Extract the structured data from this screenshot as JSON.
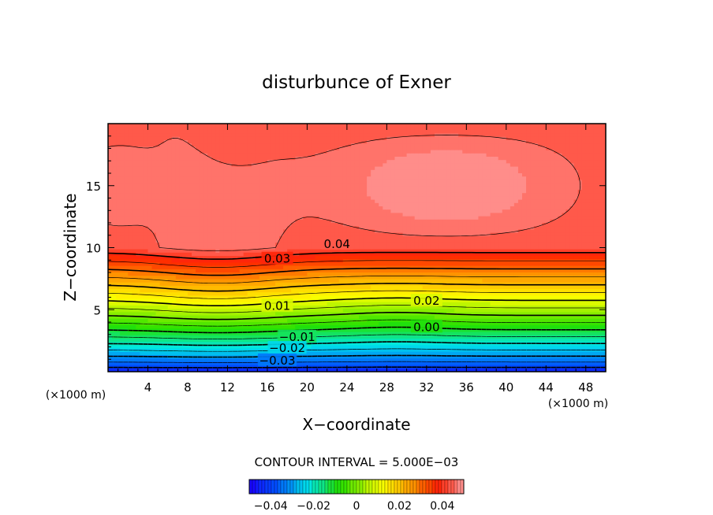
{
  "chart_data": {
    "type": "heatmap",
    "title": "disturbunce of Exner",
    "xlabel": "X−coordinate",
    "ylabel": "Z−coordinate",
    "xunit": "(×1000 m)",
    "yunit": "(×1000 m)",
    "xlim": [
      0,
      50
    ],
    "ylim": [
      0,
      20
    ],
    "xticks": [
      4,
      8,
      12,
      16,
      20,
      24,
      28,
      32,
      36,
      40,
      44,
      48
    ],
    "yticks": [
      5,
      10,
      15
    ],
    "contour_interval_text": "CONTOUR INTERVAL = 5.000E−03",
    "contour_interval": 0.005,
    "contour_labels": [
      {
        "text": "0.04",
        "x": 23,
        "z": 10.3
      },
      {
        "text": "0.03",
        "x": 17,
        "z": 9.1
      },
      {
        "text": "0.02",
        "x": 32,
        "z": 5.7
      },
      {
        "text": "0.01",
        "x": 17,
        "z": 5.3
      },
      {
        "text": "0.00",
        "x": 32,
        "z": 3.6
      },
      {
        "text": "−0.01",
        "x": 19,
        "z": 2.8
      },
      {
        "text": "−0.02",
        "x": 18,
        "z": 1.9
      },
      {
        "text": "−0.03",
        "x": 17,
        "z": 0.9
      }
    ],
    "value_range": [
      -0.05,
      0.05
    ],
    "colorbar": {
      "ticks": [
        -0.04,
        -0.02,
        0,
        0.02,
        0.04
      ],
      "tick_labels": [
        "−0.04",
        "−0.02",
        "0",
        "0.02",
        "0.04"
      ]
    },
    "colors": {
      "min": "#1a00ff",
      "blue": "#0050ff",
      "cyan": "#00e8e8",
      "green": "#22e000",
      "yellow": "#ffff00",
      "orange": "#ff9600",
      "red": "#ff1e00",
      "max_pink": "#ff9a9a"
    }
  }
}
